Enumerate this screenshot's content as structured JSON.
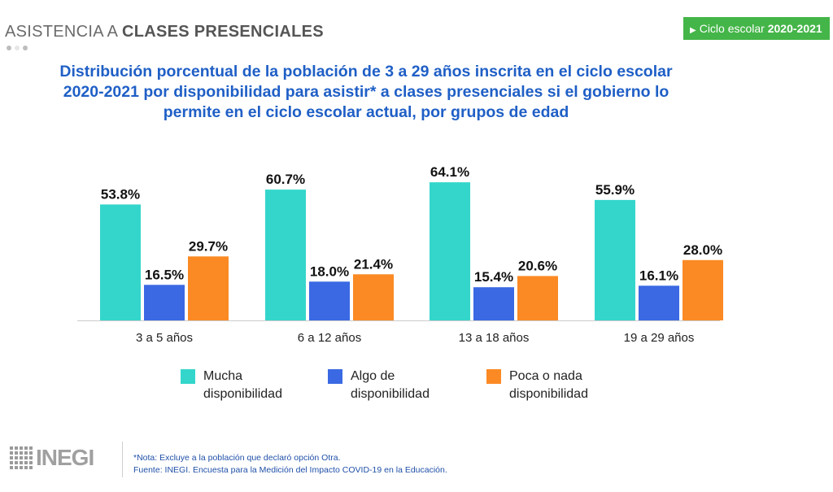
{
  "header": {
    "title_plain": "ASISTENCIA A",
    "title_bold": "CLASES PRESENCIALES"
  },
  "badge": {
    "label": "Ciclo escolar",
    "year": "2020-2021",
    "color": "#44b548"
  },
  "title_lines": [
    "Distribución porcentual de la población de 3 a 29 años inscrita en el ciclo escolar",
    "2020-2021 por disponibilidad para asistir* a clases presenciales si el gobierno lo",
    "permite en el ciclo escolar actual, por grupos de edad"
  ],
  "chart_data": {
    "type": "bar",
    "title": "Distribución porcentual de la población de 3 a 29 años inscrita en el ciclo escolar 2020-2021 por disponibilidad para asistir* a clases presenciales si el gobierno lo permite en el ciclo escolar actual, por grupos de edad",
    "categories": [
      "3 a 5 años",
      "6 a 12 años",
      "13 a 18 años",
      "19 a 29 años"
    ],
    "series": [
      {
        "name": "Mucha disponibilidad",
        "name_lines": [
          "Mucha",
          "disponibilidad"
        ],
        "color": "#34d6cb",
        "values": [
          53.8,
          60.7,
          64.1,
          55.9
        ],
        "labels": [
          "53.8%",
          "60.7%",
          "64.1%",
          "55.9%"
        ]
      },
      {
        "name": "Algo de disponibilidad",
        "name_lines": [
          "Algo de",
          "disponibilidad"
        ],
        "color": "#3b69e3",
        "values": [
          16.5,
          18.0,
          15.4,
          16.1
        ],
        "labels": [
          "16.5%",
          "18.0%",
          "15.4%",
          "16.1%"
        ]
      },
      {
        "name": "Poca o nada disponibilidad",
        "name_lines": [
          "Poca o nada",
          "disponibilidad"
        ],
        "color": "#fb8a24",
        "values": [
          29.7,
          21.4,
          20.6,
          28.0
        ],
        "labels": [
          "29.7%",
          "21.4%",
          "20.6%",
          "28.0%"
        ]
      }
    ],
    "ylim": [
      0,
      70
    ],
    "xlabel": "",
    "ylabel": "",
    "grid": false,
    "legend": "bottom"
  },
  "footer": {
    "logo_text": "INEGI",
    "note": "*Nota: Excluye a la población que declaró opción Otra.",
    "source": "Fuente: INEGI. Encuesta para la Medición del Impacto COVID-19 en la Educación."
  }
}
